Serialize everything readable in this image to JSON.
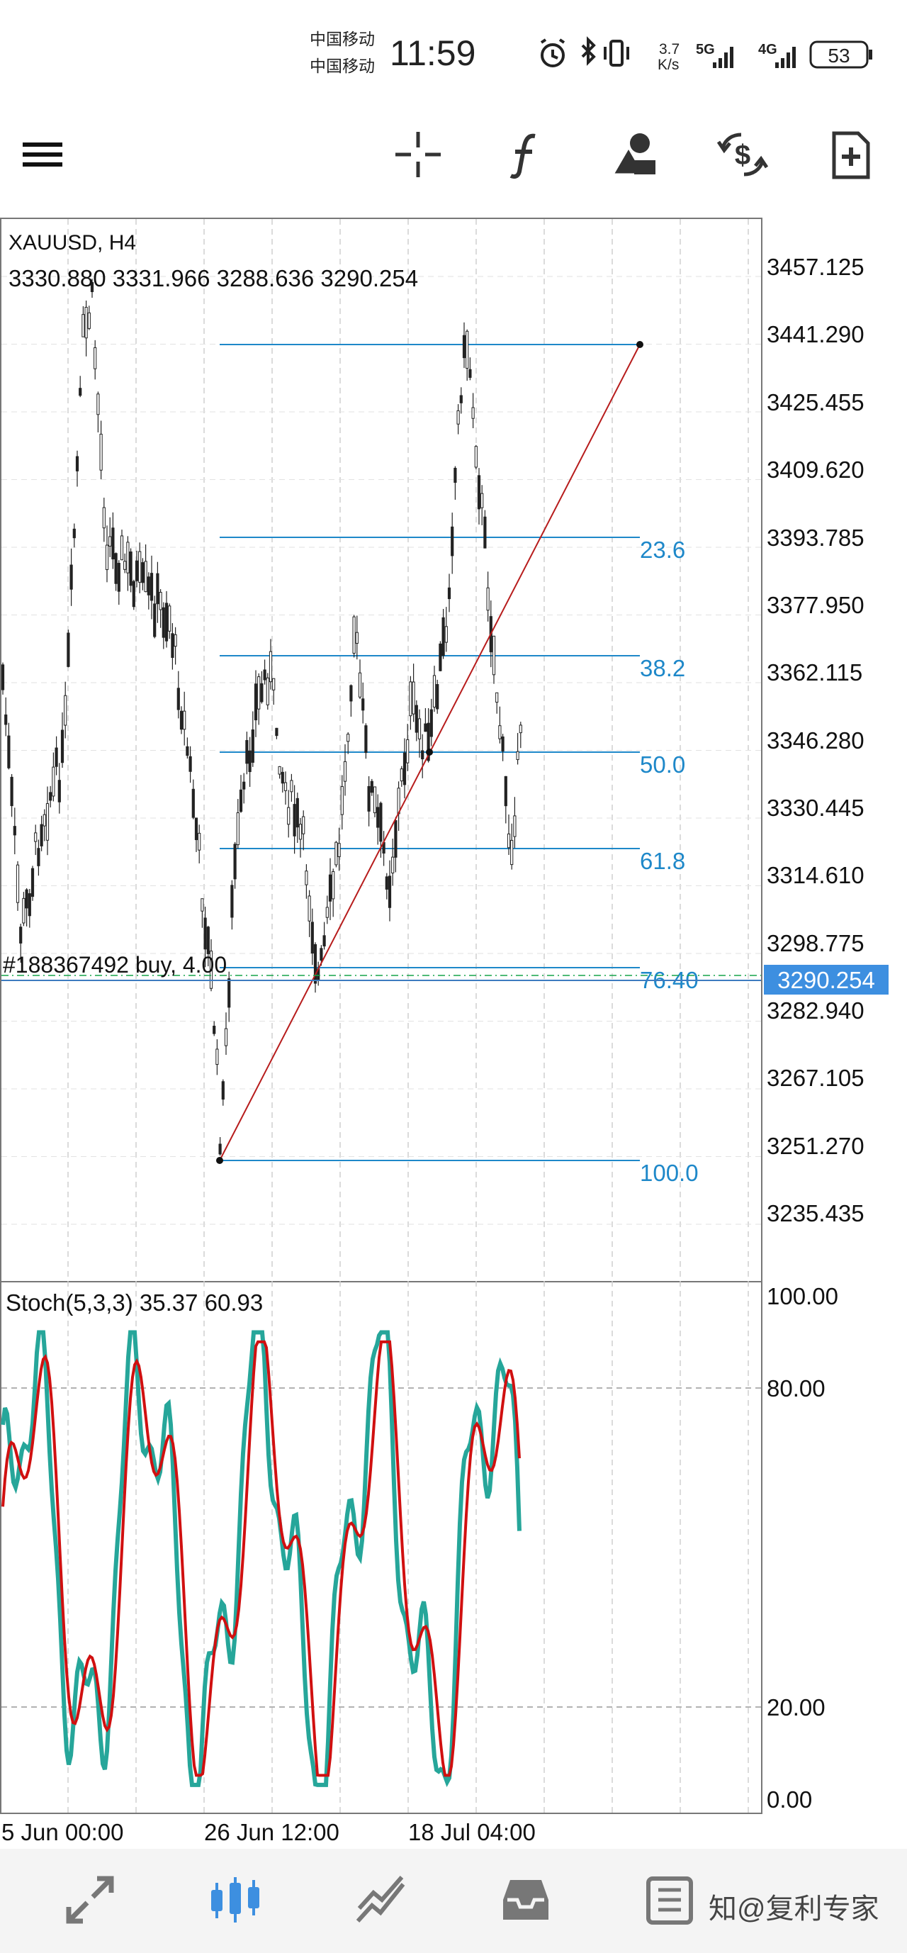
{
  "status": {
    "carrier1": "中国移动",
    "carrier2": "中国移动",
    "time": "11:59",
    "net_speed_1": "3.7",
    "net_speed_2": "K/s",
    "net1": "5G",
    "net2": "4G",
    "battery": "53"
  },
  "toolbar": {
    "icons": [
      "menu-icon",
      "crosshair-icon",
      "function-icon",
      "objects-icon",
      "currency-exchange-icon",
      "new-document-icon"
    ]
  },
  "chart": {
    "symbol": "XAUUSD, H4",
    "ohlc": "3330.880 3331.966 3288.636 3290.254",
    "price_axis": [
      "3457.125",
      "3441.290",
      "3425.455",
      "3409.620",
      "3393.785",
      "3377.950",
      "3362.115",
      "3346.280",
      "3330.445",
      "3314.610",
      "3298.775",
      "3282.940",
      "3267.105",
      "3251.270",
      "3235.435"
    ],
    "current_price": "3290.254",
    "fib_labels": [
      "23.6",
      "38.2",
      "50.0",
      "61.8",
      "76.40",
      "100.0"
    ],
    "order_label": "#188367492 buy, 4.00",
    "date_axis": [
      "5 Jun 00:00",
      "26 Jun 12:00",
      "18 Jul 04:00"
    ],
    "colors": {
      "fib": "#1e88c9",
      "trend": "#b71c1c",
      "candles": "#222222",
      "stoch_main": "#26a69a",
      "stoch_signal": "#d01010",
      "price_tag": "#3d8fe0"
    }
  },
  "indicator": {
    "label": "Stoch(5,3,3) 35.37 60.93",
    "axis": [
      "100.00",
      "80.00",
      "20.00",
      "0.00"
    ]
  },
  "bottom_nav": {
    "icons": [
      "trade-icon",
      "chart-icon",
      "analytics-icon",
      "inbox-icon",
      "history-icon"
    ]
  },
  "watermark": "知@复利专家"
}
